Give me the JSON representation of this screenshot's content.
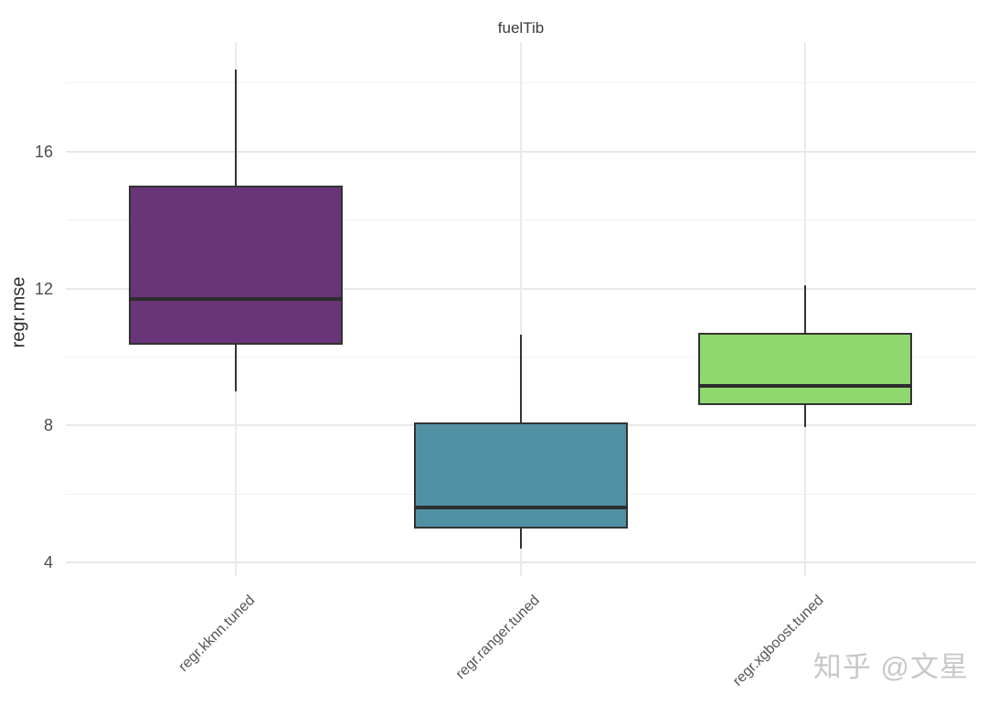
{
  "title": "fuelTib",
  "watermark": "知乎 @文星",
  "chart_data": {
    "type": "box",
    "title": "fuelTib",
    "xlabel": "",
    "ylabel": "regr.mse",
    "ylim": [
      3.6,
      19.2
    ],
    "y_major_ticks": [
      4,
      8,
      12,
      16
    ],
    "y_minor_ticks": [
      6,
      10,
      14,
      18
    ],
    "grid": true,
    "legend": "none",
    "categories": [
      "regr.kknn.tuned",
      "regr.ranger.tuned",
      "regr.xgboost.tuned"
    ],
    "boxes": [
      {
        "label": "regr.kknn.tuned",
        "fill": "#693478",
        "whisker_low": 9.0,
        "q1": 10.35,
        "median": 11.7,
        "q3": 15.0,
        "whisker_high": 18.4
      },
      {
        "label": "regr.ranger.tuned",
        "fill": "#5291A4",
        "whisker_low": 4.4,
        "q1": 5.0,
        "median": 5.6,
        "q3": 8.1,
        "whisker_high": 10.65
      },
      {
        "label": "regr.xgboost.tuned",
        "fill": "#8FD86E",
        "whisker_low": 7.95,
        "q1": 8.6,
        "median": 9.15,
        "q3": 10.7,
        "whisker_high": 12.1
      }
    ],
    "colors": {
      "stroke": "#333333",
      "median": "#2d2d2d",
      "grid_major": "#e8e8e8",
      "grid_minor": "#f1f1f1",
      "grid_vertical": "#eaeaea",
      "tick_text": "#4d4d4d",
      "title_text": "#3a3a3a"
    }
  }
}
